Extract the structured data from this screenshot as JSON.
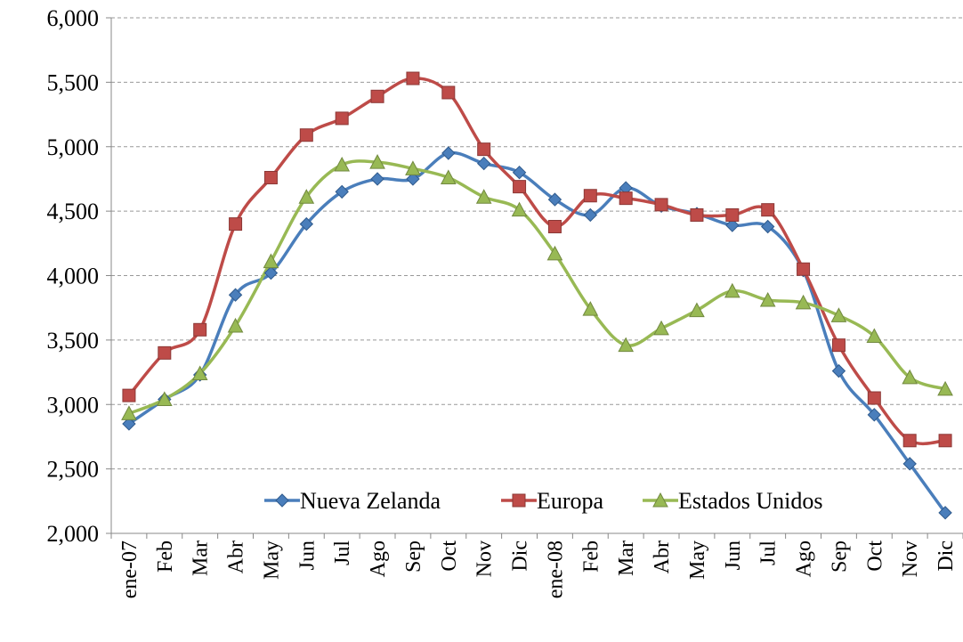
{
  "chart_data": {
    "type": "line",
    "categories": [
      "ene-07",
      "Feb",
      "Mar",
      "Abr",
      "May",
      "Jun",
      "Jul",
      "Ago",
      "Sep",
      "Oct",
      "Nov",
      "Dic",
      "ene-08",
      "Feb",
      "Mar",
      "Abr",
      "May",
      "Jun",
      "Jul",
      "Ago",
      "Sep",
      "Oct",
      "Nov",
      "Dic"
    ],
    "series": [
      {
        "name": "Nueva Zelanda",
        "color": "#4a7ebb",
        "marker": "diamond",
        "values": [
          2850,
          3040,
          3230,
          3850,
          4020,
          4400,
          4650,
          4750,
          4750,
          4950,
          4870,
          4800,
          4590,
          4470,
          4680,
          4540,
          4480,
          4390,
          4380,
          4040,
          3260,
          2920,
          2540,
          2160
        ]
      },
      {
        "name": "Europa",
        "color": "#be4b48",
        "marker": "square",
        "values": [
          3070,
          3400,
          3580,
          4400,
          4760,
          5090,
          5220,
          5390,
          5530,
          5420,
          4980,
          4690,
          4380,
          4620,
          4600,
          4550,
          4470,
          4470,
          4510,
          4050,
          3460,
          3050,
          2720,
          2720
        ]
      },
      {
        "name": "Estados Unidos",
        "color": "#98b954",
        "marker": "triangle",
        "values": [
          2930,
          3040,
          3240,
          3610,
          4110,
          4610,
          4860,
          4880,
          4830,
          4760,
          4610,
          4510,
          4170,
          3740,
          3460,
          3590,
          3730,
          3880,
          3810,
          3790,
          3690,
          3530,
          3210,
          3120
        ]
      }
    ],
    "ylim": [
      2000,
      6000
    ],
    "yticks": [
      {
        "value": 2000,
        "label": "2,000"
      },
      {
        "value": 2500,
        "label": "2,500"
      },
      {
        "value": 3000,
        "label": "3,000"
      },
      {
        "value": 3500,
        "label": "3,500"
      },
      {
        "value": 4000,
        "label": "4,000"
      },
      {
        "value": 4500,
        "label": "4,500"
      },
      {
        "value": 5000,
        "label": "5,000"
      },
      {
        "value": 5500,
        "label": "5,500"
      },
      {
        "value": 6000,
        "label": "6,000"
      }
    ],
    "grid": true,
    "smooth": true,
    "legend": "bottom"
  }
}
